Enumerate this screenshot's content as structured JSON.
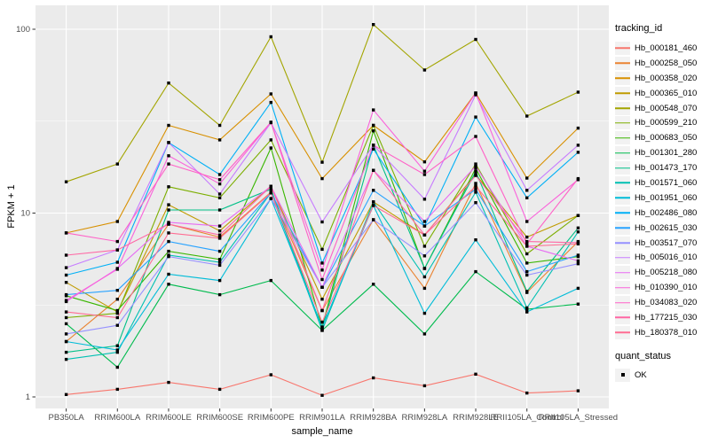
{
  "chart_data": {
    "type": "line",
    "title": "",
    "xlabel": "sample_name",
    "ylabel": "FPKM + 1",
    "y_scale": "log10",
    "y_ticks": [
      "1",
      "10",
      "100"
    ],
    "y_tick_values": [
      1,
      10,
      100
    ],
    "ylim": [
      0.95,
      130
    ],
    "grid": "on",
    "legend_title": "tracking_id",
    "legend_position": "right",
    "marker": "small-black-square",
    "quant_legend": {
      "title": "quant_status",
      "items": [
        "OK"
      ]
    },
    "colors": {
      "panel_bg": "#EBEBEB",
      "grid": "#FFFFFF",
      "tick_text": "#4D4D4D",
      "axis_title": "#000000",
      "marker": "#000000",
      "legend_key_bg": "#F2F2F2"
    },
    "categories": [
      "PB350LA",
      "RRIM600LA",
      "RRIM600LE",
      "RRIM600SE",
      "RRIM600PE",
      "RRIM901LA",
      "RRIM928BA",
      "RRIM928LA",
      "RRIM928LE",
      "RRII105LA_Control",
      "RRII105LA_Stressed"
    ],
    "series": [
      {
        "name": "Hb_000181_460",
        "color": "#F8766D",
        "values": [
          1.03,
          1.1,
          1.2,
          1.1,
          1.32,
          1.02,
          1.27,
          1.15,
          1.33,
          1.05,
          1.08
        ]
      },
      {
        "name": "Hb_000258_050",
        "color": "#EA8331",
        "values": [
          2.0,
          3.4,
          8.7,
          7.4,
          13.0,
          2.95,
          9.2,
          3.9,
          14.5,
          3.7,
          7.0
        ]
      },
      {
        "name": "Hb_000358_020",
        "color": "#D89000",
        "values": [
          7.8,
          9.0,
          30.0,
          25.0,
          44.5,
          15.4,
          30.0,
          19.0,
          45.0,
          15.5,
          29.0
        ]
      },
      {
        "name": "Hb_000365_010",
        "color": "#C09B00",
        "values": [
          4.2,
          2.9,
          11.1,
          8.0,
          14.0,
          3.4,
          11.5,
          7.6,
          16.2,
          7.4,
          9.7
        ]
      },
      {
        "name": "Hb_000548_070",
        "color": "#A3A500",
        "values": [
          14.8,
          18.5,
          51.0,
          30.0,
          91.0,
          18.9,
          106.0,
          60.0,
          88.0,
          33.7,
          45.5
        ]
      },
      {
        "name": "Hb_000599_210",
        "color": "#7CAE00",
        "values": [
          2.7,
          2.85,
          13.9,
          12.1,
          25.0,
          6.35,
          30.0,
          6.6,
          18.5,
          6.0,
          9.7
        ]
      },
      {
        "name": "Hb_000683_050",
        "color": "#39B600",
        "values": [
          3.55,
          2.95,
          6.2,
          5.6,
          22.6,
          2.4,
          28.0,
          5.0,
          17.5,
          5.35,
          5.8
        ]
      },
      {
        "name": "Hb_001301_280",
        "color": "#00BB4E",
        "values": [
          2.5,
          1.45,
          4.1,
          3.6,
          4.3,
          2.3,
          4.1,
          2.2,
          4.8,
          3.0,
          3.2
        ]
      },
      {
        "name": "Hb_001473_170",
        "color": "#00C087",
        "values": [
          1.75,
          1.9,
          10.4,
          10.4,
          13.5,
          2.35,
          23.4,
          5.0,
          16.8,
          3.75,
          8.3
        ]
      },
      {
        "name": "Hb_001571_060",
        "color": "#00C0B2",
        "values": [
          1.6,
          1.75,
          5.9,
          5.4,
          12.9,
          2.3,
          11.5,
          4.5,
          13.0,
          3.05,
          7.9
        ]
      },
      {
        "name": "Hb_001951_060",
        "color": "#00BCD8",
        "values": [
          2.0,
          1.8,
          4.65,
          4.3,
          12.0,
          2.4,
          11.0,
          2.85,
          7.15,
          2.9,
          3.9
        ]
      },
      {
        "name": "Hb_002486_080",
        "color": "#00B0F6",
        "values": [
          4.6,
          5.4,
          24.2,
          16.2,
          40.0,
          5.35,
          22.3,
          8.5,
          33.3,
          12.1,
          21.4
        ]
      },
      {
        "name": "Hb_002615_030",
        "color": "#29A3FF",
        "values": [
          3.6,
          3.8,
          7.0,
          6.2,
          12.9,
          3.95,
          13.3,
          8.5,
          13.5,
          4.8,
          5.9
        ]
      },
      {
        "name": "Hb_003517_070",
        "color": "#9590FF",
        "values": [
          2.2,
          2.45,
          5.8,
          5.2,
          12.0,
          3.95,
          9.2,
          5.85,
          11.4,
          4.6,
          5.3
        ]
      },
      {
        "name": "Hb_005016_010",
        "color": "#C77CFF",
        "values": [
          5.05,
          6.3,
          24.2,
          12.7,
          31.0,
          8.95,
          23.4,
          11.9,
          44.0,
          13.3,
          23.4
        ]
      },
      {
        "name": "Hb_005218_080",
        "color": "#E76BF3",
        "values": [
          3.3,
          5.0,
          8.9,
          8.5,
          14.0,
          3.95,
          17.1,
          9.0,
          18.0,
          6.6,
          5.5
        ]
      },
      {
        "name": "Hb_010390_010",
        "color": "#FA62DB",
        "values": [
          3.35,
          4.95,
          20.5,
          14.4,
          31.2,
          4.9,
          36.4,
          16.9,
          45.0,
          9.0,
          15.2
        ]
      },
      {
        "name": "Hb_034083_020",
        "color": "#FF61C7",
        "values": [
          7.8,
          7.0,
          18.5,
          15.2,
          31.2,
          4.35,
          23.4,
          16.2,
          26.1,
          6.8,
          15.4
        ]
      },
      {
        "name": "Hb_177215_030",
        "color": "#FF67A4",
        "values": [
          5.9,
          6.3,
          8.7,
          7.6,
          14.0,
          2.95,
          17.1,
          7.6,
          16.0,
          7.0,
          6.9
        ]
      },
      {
        "name": "Hb_180378_010",
        "color": "#FF6C92",
        "values": [
          2.9,
          2.7,
          7.8,
          7.3,
          12.9,
          2.55,
          11.0,
          7.6,
          14.0,
          6.6,
          6.8
        ]
      }
    ]
  }
}
